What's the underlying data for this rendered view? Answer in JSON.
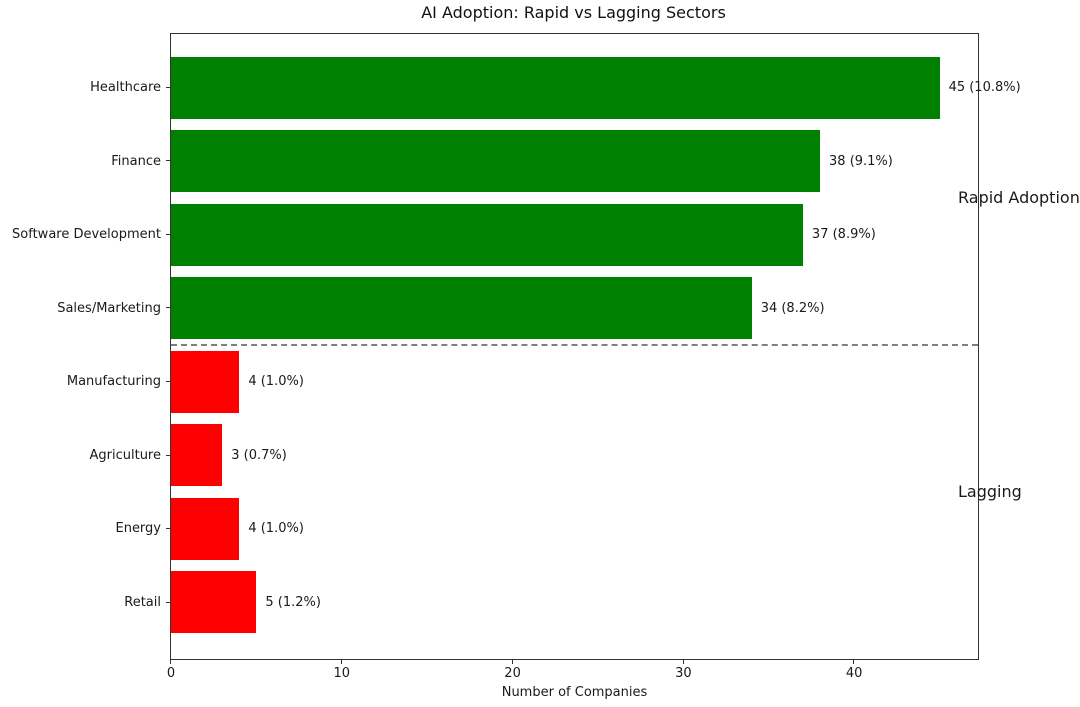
{
  "chart_data": {
    "type": "bar",
    "orientation": "horizontal",
    "title": "AI Adoption: Rapid vs Lagging Sectors",
    "xlabel": "Number of Companies",
    "ylabel": "",
    "categories": [
      "Healthcare",
      "Finance",
      "Software Development",
      "Sales/Marketing",
      "Manufacturing",
      "Agriculture",
      "Energy",
      "Retail"
    ],
    "values": [
      45,
      38,
      37,
      34,
      4,
      3,
      4,
      5
    ],
    "bar_labels": [
      "45 (10.8%)",
      "38 (9.1%)",
      "37 (8.9%)",
      "34 (8.2%)",
      "4 (1.0%)",
      "3 (0.7%)",
      "4 (1.0%)",
      "5 (1.2%)"
    ],
    "groups": [
      "rapid",
      "rapid",
      "rapid",
      "rapid",
      "lagging",
      "lagging",
      "lagging",
      "lagging"
    ],
    "group_colors": {
      "rapid": "#008000",
      "lagging": "#ff0000"
    },
    "xlim": [
      0,
      47.25
    ],
    "xticks": [
      0,
      10,
      20,
      30,
      40
    ],
    "grid": false,
    "legend": null,
    "separator": {
      "style": "dashed",
      "color": "#7f7f7f",
      "between_index": 3.5
    },
    "annotations": [
      {
        "name": "annotation-rapid-adoption",
        "text": "Rapid Adoption",
        "y_index": 1.5
      },
      {
        "name": "annotation-lagging",
        "text": "Lagging",
        "y_index": 5.5
      }
    ]
  }
}
